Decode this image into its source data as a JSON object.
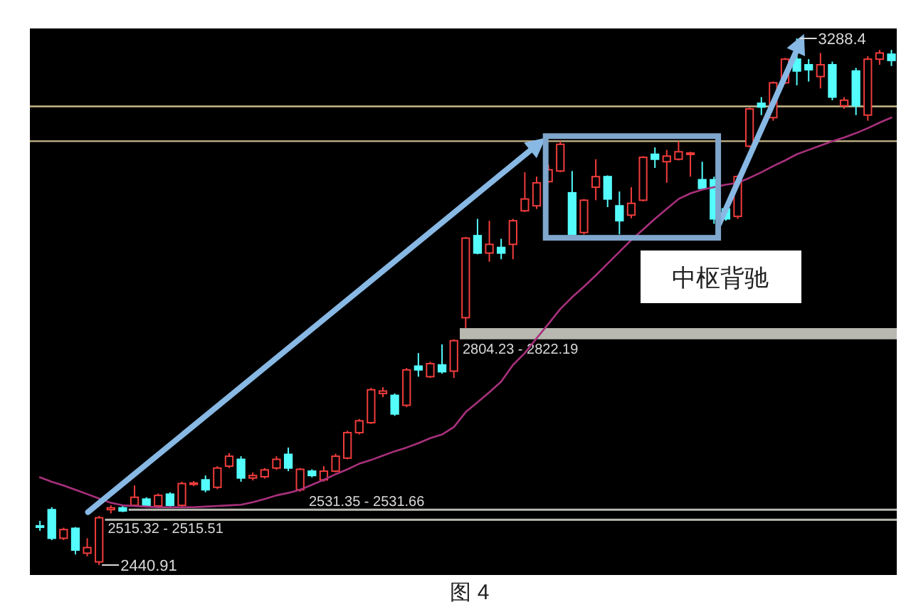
{
  "chart_data": {
    "type": "candlestick",
    "categories": [
      null,
      null,
      null,
      null,
      null,
      null,
      null,
      null,
      null,
      null,
      null,
      null,
      null,
      null,
      null,
      null,
      null,
      null,
      null,
      null,
      null,
      null,
      null,
      null,
      null,
      null,
      null,
      null,
      null,
      null,
      null,
      null,
      null,
      null,
      null,
      null,
      null,
      null,
      null,
      null,
      null,
      null,
      null,
      null,
      null,
      null,
      null,
      null,
      null,
      null,
      null,
      null,
      null,
      null,
      null,
      null,
      null,
      null,
      null,
      null,
      null,
      null,
      null,
      null,
      null,
      null,
      null,
      null,
      null,
      null,
      null,
      null,
      null
    ],
    "series": [
      {
        "colors": [
          "#54fcfc",
          "#54fcfc",
          "#f03c3c",
          "#54fcfc",
          "#f03c3c",
          "#f03c3c",
          "#f03c3c",
          "#54fcfc",
          "#f03c3c",
          "#54fcfc",
          "#f03c3c",
          "#54fcfc",
          "#f03c3c",
          "#f03c3c",
          "#54fcfc",
          "#f03c3c",
          "#f03c3c",
          "#54fcfc",
          "#f03c3c",
          "#f03c3c",
          "#f03c3c",
          "#54fcfc",
          "#f03c3c",
          "#54fcfc",
          "#f03c3c",
          "#f03c3c",
          "#f03c3c",
          "#f03c3c",
          "#f03c3c",
          "#f03c3c",
          "#54fcfc",
          "#f03c3c",
          "#54fcfc",
          "#f03c3c",
          "#54fcfc",
          "#f03c3c",
          "#f03c3c",
          "#54fcfc",
          "#f03c3c",
          "#54fcfc",
          "#f03c3c",
          "#f03c3c",
          "#f03c3c",
          "#f03c3c",
          "#f03c3c",
          "#54fcfc",
          "#f03c3c",
          "#f03c3c",
          "#54fcfc",
          "#54fcfc",
          "#f03c3c",
          "#f03c3c",
          "#54fcfc",
          "#f03c3c",
          "#f03c3c",
          "#f03c3c",
          "#54fcfc",
          "#54fcfc",
          "#54fcfc",
          "#f03c3c",
          "#f03c3c",
          "#54fcfc",
          "#f03c3c",
          "#f03c3c",
          "#54fcfc",
          "#54fcfc",
          "#f03c3c",
          "#54fcfc",
          "#f03c3c",
          "#54fcfc",
          "#f03c3c",
          "#f03c3c",
          "#54fcfc"
        ],
        "ohlc": [
          [
            2504,
            2512,
            2496,
            2502
          ],
          [
            2530,
            2534,
            2481,
            2484
          ],
          [
            2484,
            2501,
            2481,
            2498
          ],
          [
            2500,
            2502,
            2458,
            2465
          ],
          [
            2460,
            2484,
            2455,
            2469
          ],
          [
            2446,
            2520,
            2440.91,
            2517
          ],
          [
            2530,
            2537,
            2524,
            2533
          ],
          [
            2533,
            2536,
            2526,
            2528
          ],
          [
            2537,
            2569,
            2535,
            2550
          ],
          [
            2547,
            2550,
            2535,
            2537
          ],
          [
            2536,
            2556,
            2534,
            2553
          ],
          [
            2555,
            2558,
            2535,
            2537
          ],
          [
            2537,
            2575,
            2535,
            2572
          ],
          [
            2571,
            2576,
            2568,
            2573
          ],
          [
            2578,
            2585,
            2558,
            2562
          ],
          [
            2566,
            2600,
            2563,
            2597
          ],
          [
            2600,
            2621,
            2597,
            2616
          ],
          [
            2611,
            2616,
            2575,
            2581
          ],
          [
            2581,
            2590,
            2577,
            2585
          ],
          [
            2583,
            2597,
            2580,
            2594
          ],
          [
            2597,
            2616,
            2594,
            2611
          ],
          [
            2619,
            2630,
            2592,
            2597
          ],
          [
            2562,
            2597,
            2559,
            2595
          ],
          [
            2592,
            2595,
            2582,
            2585
          ],
          [
            2578,
            2600,
            2575,
            2592
          ],
          [
            2592,
            2620,
            2590,
            2616
          ],
          [
            2613,
            2657,
            2611,
            2654
          ],
          [
            2654,
            2676,
            2651,
            2673
          ],
          [
            2670,
            2726,
            2668,
            2723
          ],
          [
            2717,
            2727,
            2711,
            2721
          ],
          [
            2714,
            2717,
            2681,
            2684
          ],
          [
            2698,
            2758,
            2695,
            2755
          ],
          [
            2761,
            2782,
            2744,
            2755
          ],
          [
            2744,
            2768,
            2742,
            2765
          ],
          [
            2763,
            2796,
            2749,
            2752
          ],
          [
            2753,
            2804.23,
            2742,
            2802
          ],
          [
            2839,
            2969,
            2822.19,
            2967
          ],
          [
            2971,
            2998,
            2941,
            2943
          ],
          [
            2943,
            2995,
            2929,
            2957
          ],
          [
            2952,
            2966,
            2933,
            2943
          ],
          [
            2957,
            2998,
            2933,
            2995
          ],
          [
            3011,
            3073,
            3009,
            3030
          ],
          [
            3019,
            3066,
            3014,
            3056
          ],
          [
            3058,
            3085,
            3056,
            3077
          ],
          [
            3075,
            3123,
            3073,
            3118
          ],
          [
            3040,
            3075,
            2971,
            2973
          ],
          [
            2976,
            3030,
            2973,
            3028
          ],
          [
            3049,
            3094,
            3028,
            3066
          ],
          [
            3066,
            3068,
            3017,
            3030
          ],
          [
            3019,
            3042,
            2973,
            2995
          ],
          [
            3004,
            3049,
            2999,
            3023
          ],
          [
            3028,
            3099,
            3026,
            3097
          ],
          [
            3102,
            3113,
            3080,
            3094
          ],
          [
            3090,
            3109,
            3056,
            3099
          ],
          [
            3094,
            3123,
            3092,
            3106
          ],
          [
            3102,
            3106,
            3066,
            3104
          ],
          [
            3061,
            3090,
            3045,
            3047
          ],
          [
            3061,
            3066,
            2990,
            2998
          ],
          [
            3014,
            3017,
            2995,
            2998
          ],
          [
            3002,
            3068,
            2998,
            3066
          ],
          [
            3115,
            3177,
            3113,
            3175
          ],
          [
            3184,
            3194,
            3165,
            3178
          ],
          [
            3161,
            3219,
            3156,
            3217
          ],
          [
            3217,
            3257,
            3215,
            3255
          ],
          [
            3255,
            3288.4,
            3213,
            3236
          ],
          [
            3246,
            3255,
            3219,
            3238
          ],
          [
            3227,
            3265,
            3208,
            3246
          ],
          [
            3246,
            3251,
            3189,
            3194
          ],
          [
            3180,
            3194,
            3175,
            3189
          ],
          [
            3236,
            3241,
            3165,
            3180
          ],
          [
            3165,
            3260,
            3156,
            3255
          ],
          [
            3255,
            3270,
            3246,
            3265
          ],
          [
            3263,
            3270,
            3244,
            3253
          ]
        ]
      },
      {
        "type": "line",
        "color": "#a8307c",
        "values": [
          2582,
          2575,
          2569,
          2562,
          2555,
          2548,
          2541,
          2537,
          2536,
          2535,
          2534,
          2534,
          2534,
          2534,
          2535,
          2536,
          2537,
          2538,
          2542,
          2547,
          2553,
          2557,
          2562,
          2570,
          2578,
          2587,
          2595,
          2604,
          2610,
          2617,
          2624,
          2630,
          2637,
          2645,
          2651,
          2663,
          2687,
          2703,
          2719,
          2736,
          2763,
          2782,
          2806,
          2829,
          2853,
          2872,
          2889,
          2907,
          2926,
          2945,
          2964,
          2981,
          2998,
          3014,
          3030,
          3039,
          3045,
          3049,
          3053,
          3056,
          3064,
          3073,
          3083,
          3092,
          3102,
          3109,
          3116,
          3123,
          3129,
          3136,
          3144,
          3153,
          3161
        ]
      }
    ],
    "ref_lines": [
      {
        "axis": "y",
        "value": 3179,
        "color": "#c8b98c"
      },
      {
        "axis": "y",
        "value": 3123,
        "color": "#c8b98c"
      }
    ],
    "bands": [
      {
        "axis": "y",
        "from": 2804.23,
        "to": 2822.19,
        "label": "2804.23 - 2822.19",
        "color": "#b8b8b0"
      },
      {
        "axis": "y",
        "from": 2531.35,
        "to": 2531.66,
        "label": "2531.35 - 2531.66",
        "color": "#b8b8b0"
      },
      {
        "axis": "y",
        "from": 2515.32,
        "to": 2515.51,
        "label": "2515.32 - 2515.51",
        "color": "#b8b8b0"
      }
    ],
    "annotations": [
      "2440.91",
      "3288.4",
      "中枢背驰",
      "图 4"
    ]
  }
}
